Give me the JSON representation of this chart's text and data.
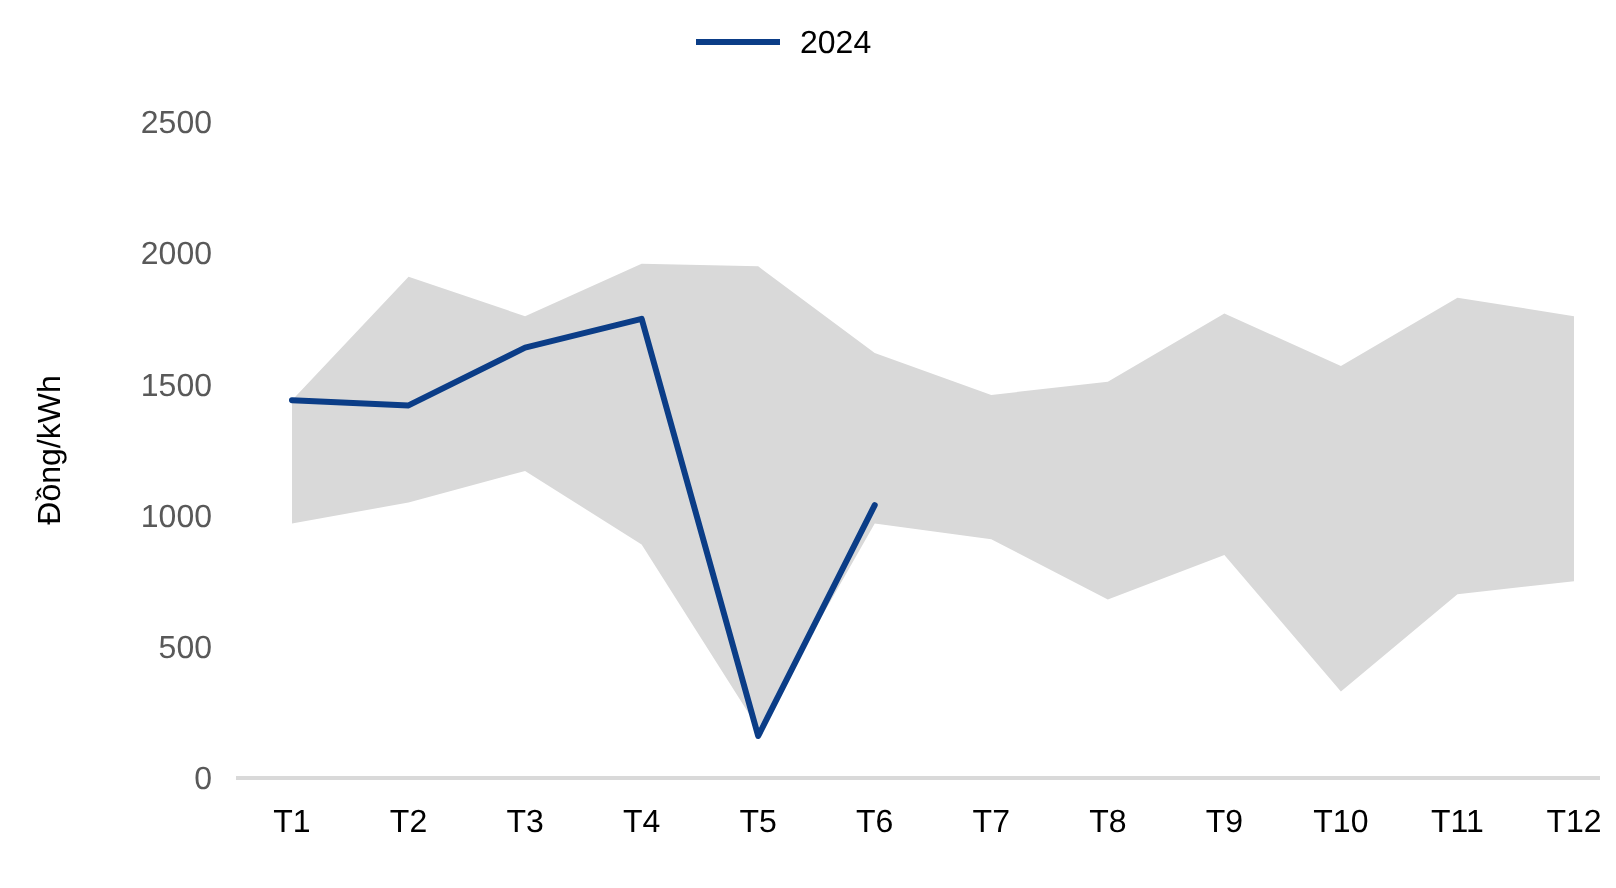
{
  "chart_data": {
    "type": "line",
    "ylabel": "Đồng/kWh",
    "categories": [
      "T1",
      "T2",
      "T3",
      "T4",
      "T5",
      "T6",
      "T7",
      "T8",
      "T9",
      "T10",
      "T11",
      "T12"
    ],
    "series": [
      {
        "name": "2024",
        "color": "#0b3d87",
        "values": [
          1440,
          1420,
          1640,
          1750,
          160,
          1040,
          null,
          null,
          null,
          null,
          null,
          null
        ],
        "lower": [
          970,
          1050,
          1170,
          890,
          190,
          970,
          910,
          680,
          850,
          330,
          700,
          750
        ],
        "upper": [
          1440,
          1910,
          1760,
          1960,
          1950,
          1620,
          1460,
          1510,
          1770,
          1570,
          1830,
          1760
        ]
      }
    ],
    "ylim": [
      0,
      2500
    ],
    "yticks": [
      0,
      500,
      1000,
      1500,
      2000,
      2500
    ],
    "grid": false,
    "legend": "top",
    "marker": "none",
    "line_style": "solid"
  }
}
